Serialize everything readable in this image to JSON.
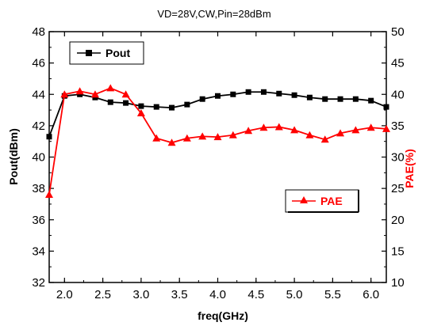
{
  "chart_data": {
    "type": "line",
    "title": "VD=28V,CW,Pin=28dBm",
    "xlabel": "freq(GHz)",
    "ylabel_left": "Pout(dBm)",
    "ylabel_right": "PAE(%)",
    "xlim": [
      1.8,
      6.2
    ],
    "ylim_left": [
      32,
      48
    ],
    "ylim_right": [
      10,
      50
    ],
    "xticks": [
      "2.0",
      "2.5",
      "3.0",
      "3.5",
      "4.0",
      "4.5",
      "5.0",
      "5.5",
      "6.0"
    ],
    "yticks_left": [
      "32",
      "34",
      "36",
      "38",
      "40",
      "42",
      "44",
      "46",
      "48"
    ],
    "yticks_right": [
      "10",
      "15",
      "20",
      "25",
      "30",
      "35",
      "40",
      "45",
      "50"
    ],
    "series": [
      {
        "name": "Pout",
        "axis": "left",
        "color": "#000000",
        "marker": "square",
        "x": [
          1.8,
          2.0,
          2.2,
          2.4,
          2.6,
          2.8,
          3.0,
          3.2,
          3.4,
          3.6,
          3.8,
          4.0,
          4.2,
          4.4,
          4.6,
          4.8,
          5.0,
          5.2,
          5.4,
          5.6,
          5.8,
          6.0,
          6.2
        ],
        "values": [
          41.3,
          43.9,
          44.0,
          43.8,
          43.5,
          43.45,
          43.25,
          43.2,
          43.15,
          43.35,
          43.7,
          43.9,
          44.0,
          44.15,
          44.15,
          44.05,
          43.95,
          43.8,
          43.7,
          43.7,
          43.7,
          43.6,
          43.2
        ]
      },
      {
        "name": "PAE",
        "axis": "right",
        "color": "#ff0000",
        "marker": "triangle",
        "x": [
          1.8,
          2.0,
          2.2,
          2.4,
          2.6,
          2.8,
          3.0,
          3.2,
          3.4,
          3.6,
          3.8,
          4.0,
          4.2,
          4.4,
          4.6,
          4.8,
          5.0,
          5.2,
          5.4,
          5.6,
          5.8,
          6.0,
          6.2
        ],
        "values": [
          24,
          40,
          40.5,
          40,
          41,
          40,
          37,
          33,
          32.3,
          33,
          33.3,
          33.2,
          33.5,
          34.2,
          34.7,
          34.8,
          34.3,
          33.5,
          32.8,
          33.8,
          34.3,
          34.7,
          34.5
        ]
      }
    ],
    "legend_pout": "Pout",
    "legend_pae": "PAE"
  }
}
